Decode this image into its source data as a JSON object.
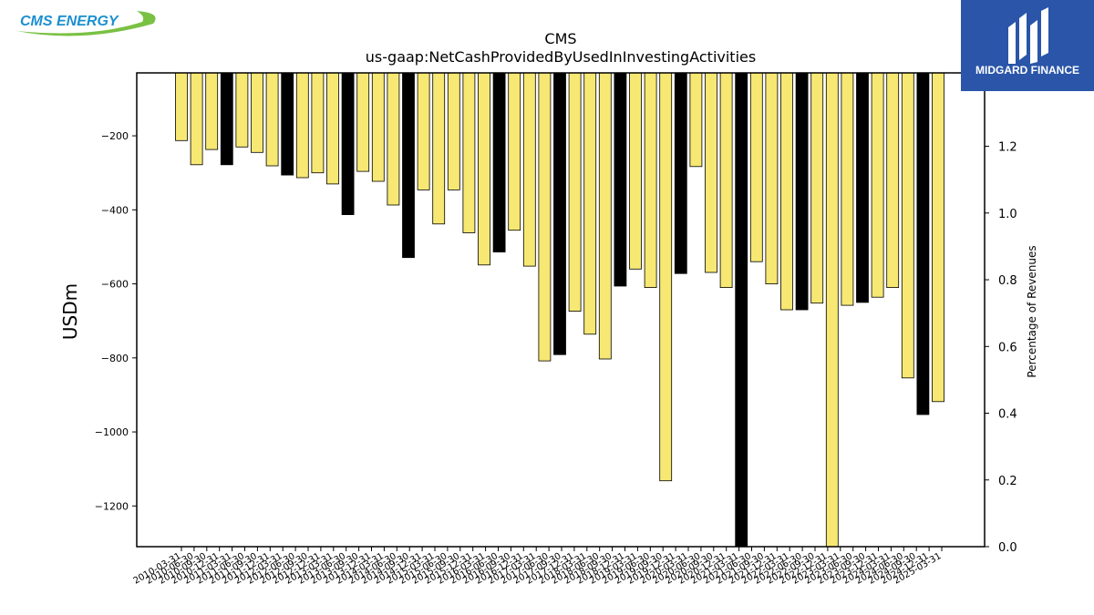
{
  "logos": {
    "left_text": "CMS ENERGY",
    "right_text": "MIDGARD FINANCE",
    "left_color": "#1b8fd0",
    "left_swoosh_color": "#7ac143",
    "right_bg": "#2a55a8"
  },
  "chart_data": {
    "type": "bar",
    "title": "CMS",
    "subtitle": "us-gaap:NetCashProvidedByUsedInInvestingActivities",
    "ylabel": "USDm",
    "y2label": "Percentage of Revenues",
    "ylim": [
      -1310,
      -30
    ],
    "y2lim": [
      0.0,
      1.42
    ],
    "yticks": [
      -200,
      -400,
      -600,
      -800,
      -1000,
      -1200
    ],
    "y2ticks": [
      0.0,
      0.2,
      0.4,
      0.6,
      0.8,
      1.0,
      1.2
    ],
    "colors": {
      "normal": "#f7e874",
      "q4": "#000000",
      "edge": "#000000"
    },
    "categories": [
      "2010-03-31",
      "2010-06-30",
      "2010-09-30",
      "2010-12-31",
      "2011-03-31",
      "2011-06-30",
      "2011-09-30",
      "2011-12-31",
      "2012-03-31",
      "2012-06-30",
      "2012-09-30",
      "2012-12-31",
      "2013-03-31",
      "2013-06-30",
      "2013-09-30",
      "2013-12-31",
      "2014-03-31",
      "2014-06-30",
      "2014-09-30",
      "2014-12-31",
      "2015-03-31",
      "2015-06-30",
      "2015-09-30",
      "2015-12-31",
      "2016-03-31",
      "2016-06-30",
      "2016-09-30",
      "2016-12-31",
      "2017-03-31",
      "2017-06-30",
      "2017-09-30",
      "2017-12-31",
      "2018-03-31",
      "2018-06-30",
      "2018-09-30",
      "2018-12-31",
      "2019-03-31",
      "2019-06-30",
      "2019-09-30",
      "2019-12-31",
      "2020-03-31",
      "2020-06-30",
      "2020-09-30",
      "2020-12-31",
      "2021-03-31",
      "2021-06-30",
      "2021-09-30",
      "2021-12-31",
      "2022-03-31",
      "2022-06-30",
      "2022-09-30",
      "2022-12-31",
      "2023-03-31",
      "2023-06-30",
      "2023-09-30",
      "2023-12-31",
      "2024-03-31",
      "2024-06-30",
      "2024-09-30",
      "2024-12-31",
      "2025-03-31"
    ],
    "tick_labels": [
      "2010-03-31",
      "2010-06-30",
      "2010-09-30",
      "2010-12-31",
      "2011-03-31",
      "2011-06-30",
      "2011-09-30",
      "2011-12-31",
      "2012-03-31",
      "2012-06-30",
      "2012-09-30",
      "2012-12-31",
      "2013-03-31",
      "2013-06-30",
      "2013-09-30",
      "2013-12-31",
      "2014-03-31",
      "2014-06-30",
      "2014-09-30",
      "2014-12-31",
      "2015-03-31",
      "2015-06-30",
      "2015-09-30",
      "2015-12-31",
      "2016-03-31",
      "2016-06-30",
      "2016-09-30",
      "2016-12-31",
      "2017-03-31",
      "2017-06-30",
      "2017-09-30",
      "2017-12-31",
      "2018-03-31",
      "2018-06-30",
      "2018-09-30",
      "2018-12-31",
      "2019-03-31",
      "2019-06-30",
      "2019-09-30",
      "2019-12-31",
      "2020-03-31",
      "2020-06-30",
      "2020-09-30",
      "2020-12-31",
      "2021-03-31",
      "2021-06-30",
      "2021-09-30",
      "2021-12-31",
      "2022-03-31",
      "2022-06-30",
      "2022-09-30",
      "2022-12-31",
      "2023-03-31",
      "2023-06-30",
      "2023-09-30",
      "2023-12-31",
      "2024-03-31",
      "2024-06-30",
      "2024-09-30",
      "2024-12-31",
      "2025-03-31"
    ],
    "bars": [
      {
        "x": "2010-03-31",
        "value": -213,
        "q4": false
      },
      {
        "x": "2010-06-30",
        "value": -278,
        "q4": false
      },
      {
        "x": "2010-09-30",
        "value": -237,
        "q4": false
      },
      {
        "x": "2010-12-31",
        "value": -278,
        "q4": true
      },
      {
        "x": "2011-03-31",
        "value": -230,
        "q4": false
      },
      {
        "x": "2011-06-30",
        "value": -245,
        "q4": false
      },
      {
        "x": "2011-09-30",
        "value": -281,
        "q4": false
      },
      {
        "x": "2011-12-31",
        "value": -306,
        "q4": true
      },
      {
        "x": "2012-03-31",
        "value": -313,
        "q4": false
      },
      {
        "x": "2012-06-30",
        "value": -300,
        "q4": false
      },
      {
        "x": "2012-09-30",
        "value": -330,
        "q4": false
      },
      {
        "x": "2012-12-31",
        "value": -413,
        "q4": true
      },
      {
        "x": "2013-03-31",
        "value": -296,
        "q4": false
      },
      {
        "x": "2013-06-30",
        "value": -323,
        "q4": false
      },
      {
        "x": "2013-09-30",
        "value": -387,
        "q4": false
      },
      {
        "x": "2013-12-31",
        "value": -529,
        "q4": true
      },
      {
        "x": "2014-03-31",
        "value": -346,
        "q4": false
      },
      {
        "x": "2014-06-30",
        "value": -438,
        "q4": false
      },
      {
        "x": "2014-09-30",
        "value": -346,
        "q4": false
      },
      {
        "x": "2014-12-31",
        "value": -462,
        "q4": false
      },
      {
        "x": "2015-03-31",
        "value": -549,
        "q4": false
      },
      {
        "x": "2015-06-30",
        "value": -514,
        "q4": true
      },
      {
        "x": "2015-09-30",
        "value": -455,
        "q4": false
      },
      {
        "x": "2015-12-31",
        "value": -552,
        "q4": false
      },
      {
        "x": "2016-03-31",
        "value": -808,
        "q4": false
      },
      {
        "x": "2016-06-30",
        "value": -791,
        "q4": true
      },
      {
        "x": "2016-09-30",
        "value": -674,
        "q4": false
      },
      {
        "x": "2016-12-31",
        "value": -736,
        "q4": false
      },
      {
        "x": "2017-03-31",
        "value": -803,
        "q4": false
      },
      {
        "x": "2017-06-30",
        "value": -606,
        "q4": true
      },
      {
        "x": "2017-09-30",
        "value": -560,
        "q4": false
      },
      {
        "x": "2017-12-31",
        "value": -610,
        "q4": false
      },
      {
        "x": "2018-03-31",
        "value": -1132,
        "q4": false
      },
      {
        "x": "2018-06-30",
        "value": -572,
        "q4": true
      },
      {
        "x": "2018-09-30",
        "value": -283,
        "q4": false
      },
      {
        "x": "2018-12-31",
        "value": -569,
        "q4": false
      },
      {
        "x": "2019-03-31",
        "value": -610,
        "q4": false
      },
      {
        "x": "2019-06-30",
        "value": -1360,
        "q4": true
      },
      {
        "x": "2019-09-30",
        "value": -540,
        "q4": false
      },
      {
        "x": "2019-12-31",
        "value": -600,
        "q4": false
      },
      {
        "x": "2020-03-31",
        "value": -670,
        "q4": false
      },
      {
        "x": "2020-06-30",
        "value": -670,
        "q4": true
      },
      {
        "x": "2020-09-30",
        "value": -652,
        "q4": false
      },
      {
        "x": "2020-12-31",
        "value": -1360,
        "q4": false
      },
      {
        "x": "2021-03-31",
        "value": -658,
        "q4": false
      },
      {
        "x": "2021-06-30",
        "value": -650,
        "q4": true
      },
      {
        "x": "2021-09-30",
        "value": -636,
        "q4": false
      },
      {
        "x": "2021-12-31",
        "value": -610,
        "q4": false
      },
      {
        "x": "2022-03-31",
        "value": -854,
        "q4": false
      },
      {
        "x": "2022-06-30",
        "value": -953,
        "q4": true
      },
      {
        "x": "2022-09-30",
        "value": -918,
        "q4": false
      }
    ]
  }
}
